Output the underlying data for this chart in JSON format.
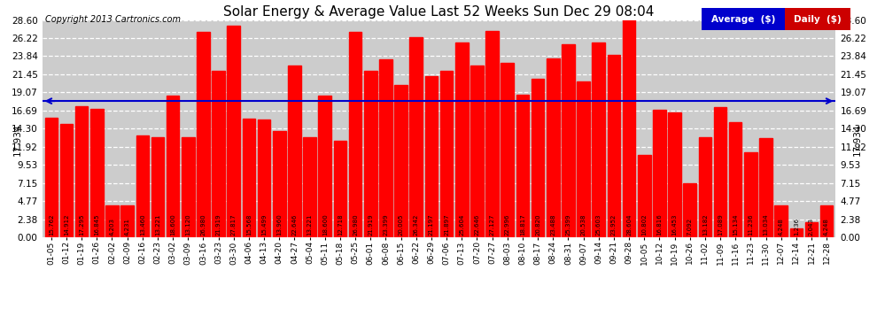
{
  "title": "Solar Energy & Average Value Last 52 Weeks Sun Dec 29 08:04",
  "copyright": "Copyright 2013 Cartronics.com",
  "legend_labels": [
    "Average  ($)",
    "Daily  ($)"
  ],
  "legend_colors": [
    "#0000cc",
    "#cc0000"
  ],
  "average_line_value": 17.934,
  "average_label": "17.934",
  "bar_color": "#ff0000",
  "background_color": "#ffffff",
  "plot_bg_color": "#cccccc",
  "grid_color": "#ffffff",
  "yticks": [
    0.0,
    2.38,
    4.77,
    7.15,
    9.53,
    11.92,
    14.3,
    16.69,
    19.07,
    21.45,
    23.84,
    26.22,
    28.6
  ],
  "ymax": 28.6,
  "categories": [
    "01-05",
    "01-12",
    "01-19",
    "01-26",
    "02-02",
    "02-09",
    "02-16",
    "02-23",
    "03-02",
    "03-09",
    "03-16",
    "03-23",
    "03-30",
    "04-06",
    "04-13",
    "04-20",
    "04-27",
    "05-04",
    "05-11",
    "05-18",
    "05-25",
    "06-01",
    "06-08",
    "06-15",
    "06-22",
    "06-29",
    "07-06",
    "07-13",
    "07-20",
    "07-27",
    "08-03",
    "08-10",
    "08-17",
    "08-24",
    "08-31",
    "09-07",
    "09-14",
    "09-21",
    "09-28",
    "10-05",
    "10-12",
    "10-19",
    "10-26",
    "11-02",
    "11-09",
    "11-16",
    "11-23",
    "11-30",
    "12-07",
    "12-14",
    "12-21",
    "12-28"
  ],
  "values": [
    15.762,
    14.912,
    17.295,
    16.845,
    4.203,
    4.231,
    13.46,
    13.221,
    18.6,
    13.12,
    26.98,
    21.919,
    27.817,
    15.568,
    15.499,
    13.96,
    22.646,
    13.221,
    18.6,
    12.718,
    26.98,
    21.919,
    23.399,
    20.005,
    26.342,
    21.197,
    21.897,
    25.604,
    22.646,
    27.127,
    22.996,
    18.817,
    20.82,
    23.488,
    25.399,
    20.538,
    25.603,
    23.952,
    28.604,
    10.802,
    16.816,
    16.453,
    7.092,
    13.182,
    17.089,
    15.134,
    11.236,
    13.034,
    4.248,
    1.236,
    2.043,
    4.248
  ]
}
